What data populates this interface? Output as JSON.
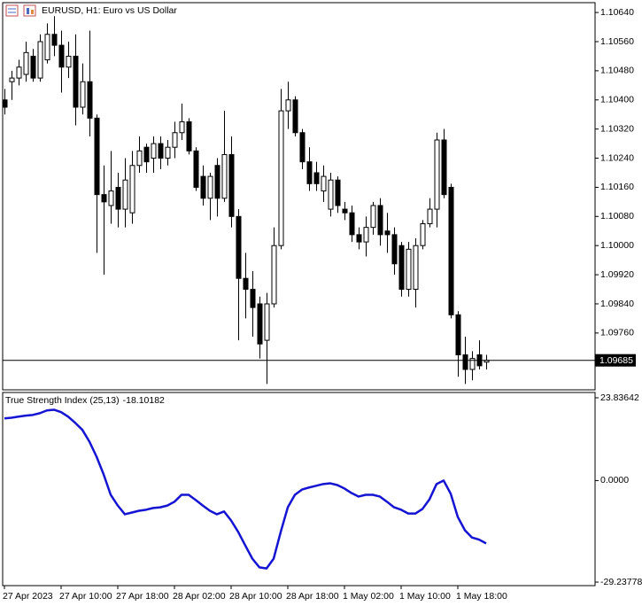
{
  "chart_data": [
    {
      "type": "candlestick",
      "title": "EURUSD, H1:  Euro vs US Dollar",
      "open": [
        1.104,
        1.1045,
        1.1046,
        1.1047,
        1.1052,
        1.1046,
        1.1051,
        1.1058,
        1.1055,
        1.1049,
        1.1052,
        1.1038,
        1.1045,
        1.1035,
        1.1014,
        1.1011,
        1.1016,
        1.101,
        1.1009,
        1.1022,
        1.1027,
        1.1024,
        1.1028,
        1.1024,
        1.1027,
        1.1031,
        1.1034,
        1.1026,
        1.1019,
        1.1013,
        1.1022,
        1.1013,
        1.1025,
        1.1008,
        1.0991,
        1.0988,
        1.0984,
        1.0974,
        1.0984,
        1.1,
        1.1037,
        1.104,
        1.1031,
        1.1023,
        1.102,
        1.1015,
        1.101,
        1.1018,
        1.101,
        1.1009,
        1.1003,
        1.1001,
        1.1005,
        1.1011,
        1.1004,
        1.1003,
        1.1,
        1.0988,
        1.0988,
        1.1,
        1.1006,
        1.101,
        1.1029,
        1.1016,
        1.0981,
        1.097,
        1.0966,
        1.097,
        1.0968
      ],
      "high": [
        1.1043,
        1.1048,
        1.1051,
        1.1056,
        1.1054,
        1.1058,
        1.1061,
        1.1063,
        1.1059,
        1.1056,
        1.1058,
        1.105,
        1.1059,
        1.1036,
        1.1022,
        1.1026,
        1.102,
        1.1024,
        1.1026,
        1.103,
        1.1028,
        1.103,
        1.103,
        1.1029,
        1.1034,
        1.1039,
        1.1035,
        1.1027,
        1.1022,
        1.102,
        1.1024,
        1.1037,
        1.103,
        1.101,
        1.0998,
        1.0993,
        1.0986,
        1.0987,
        1.1005,
        1.1043,
        1.1045,
        1.1041,
        1.1032,
        1.1027,
        1.1023,
        1.1022,
        1.102,
        1.1019,
        1.1012,
        1.1011,
        1.1005,
        1.1008,
        1.1012,
        1.1013,
        1.1009,
        1.1005,
        1.1001,
        1.1001,
        1.1002,
        1.1007,
        1.1013,
        1.1031,
        1.1032,
        1.1017,
        1.0982,
        1.0975,
        1.0971,
        1.0974,
        1.097
      ],
      "low": [
        1.1036,
        1.104,
        1.1044,
        1.1045,
        1.1045,
        1.1045,
        1.105,
        1.1052,
        1.1042,
        1.1046,
        1.1033,
        1.1036,
        1.103,
        1.0998,
        1.0992,
        1.1006,
        1.1005,
        1.1005,
        1.1006,
        1.102,
        1.102,
        1.102,
        1.1021,
        1.1022,
        1.1024,
        1.1029,
        1.1025,
        1.1015,
        1.1011,
        1.1007,
        1.1008,
        1.1012,
        1.1005,
        1.0974,
        1.098,
        1.0975,
        1.0969,
        1.0962,
        1.0983,
        1.0999,
        1.1032,
        1.103,
        1.1021,
        1.1015,
        1.1015,
        1.1012,
        1.1008,
        1.1009,
        1.1007,
        1.1001,
        1.0999,
        1.0997,
        1.1003,
        1.1,
        1.0998,
        1.0992,
        1.0986,
        1.0986,
        1.0983,
        1.0999,
        1.1005,
        1.1005,
        1.1013,
        1.098,
        1.0964,
        1.0962,
        1.0963,
        1.0966,
        1.0966
      ],
      "close": [
        1.1038,
        1.1046,
        1.1049,
        1.1053,
        1.1046,
        1.1056,
        1.1058,
        1.1055,
        1.1049,
        1.1052,
        1.1038,
        1.1045,
        1.1035,
        1.1014,
        1.1012,
        1.1015,
        1.101,
        1.1018,
        1.1022,
        1.1026,
        1.1023,
        1.1028,
        1.1024,
        1.1027,
        1.1031,
        1.1034,
        1.1026,
        1.1016,
        1.1013,
        1.1019,
        1.1013,
        1.1025,
        1.1008,
        1.0991,
        1.0988,
        1.0983,
        1.0973,
        1.0984,
        1.1,
        1.1037,
        1.104,
        1.1031,
        1.1023,
        1.1017,
        1.1017,
        1.1019,
        1.1018,
        1.1011,
        1.1009,
        1.1003,
        1.1001,
        1.1005,
        1.1011,
        1.1003,
        1.1003,
        1.0995,
        1.0988,
        1.0999,
        1.1,
        1.1006,
        1.101,
        1.1029,
        1.1014,
        1.0981,
        1.097,
        1.0966,
        1.0969,
        1.0967,
        1.09685
      ],
      "up_color": "#ffffff",
      "down_color": "#000000",
      "wick_color": "#000000",
      "price_line": true,
      "ylim": [
        1.09604,
        1.10667
      ],
      "yticks": [
        {
          "value": 1.1064,
          "label": "1.10640"
        },
        {
          "value": 1.1056,
          "label": "1.10560"
        },
        {
          "value": 1.1048,
          "label": "1.10480"
        },
        {
          "value": 1.104,
          "label": "1.10400"
        },
        {
          "value": 1.1032,
          "label": "1.10320"
        },
        {
          "value": 1.1024,
          "label": "1.10240"
        },
        {
          "value": 1.1016,
          "label": "1.10160"
        },
        {
          "value": 1.1008,
          "label": "1.10080"
        },
        {
          "value": 1.1,
          "label": "1.10000"
        },
        {
          "value": 1.0992,
          "label": "1.09920"
        },
        {
          "value": 1.0984,
          "label": "1.09840"
        },
        {
          "value": 1.0976,
          "label": "1.09760"
        }
      ],
      "grid": false
    },
    {
      "type": "line",
      "title": "True Strength Index (25,13)",
      "categories": [
        "27 Apr 2023",
        null,
        null,
        null,
        null,
        null,
        null,
        null,
        "27 Apr 10:00",
        null,
        null,
        null,
        null,
        null,
        null,
        null,
        "27 Apr 18:00",
        null,
        null,
        null,
        null,
        null,
        null,
        null,
        "28 Apr 02:00",
        null,
        null,
        null,
        null,
        null,
        null,
        null,
        "28 Apr 10:00",
        null,
        null,
        null,
        null,
        null,
        null,
        null,
        "28 Apr 18:00",
        null,
        null,
        null,
        null,
        null,
        null,
        null,
        "1 May 02:00",
        null,
        null,
        null,
        null,
        null,
        null,
        null,
        "1 May 10:00",
        null,
        null,
        null,
        null,
        null,
        null,
        null,
        "1 May 18:00",
        null,
        null,
        null,
        null
      ],
      "series": [
        {
          "name": "True Strength Index (25,13)",
          "color": "#1414d2",
          "values": [
            17.9,
            18.1,
            18.4,
            18.7,
            18.9,
            19.4,
            20.2,
            20.4,
            19.7,
            18.4,
            16.6,
            14.6,
            11.2,
            6.9,
            1.8,
            -4.1,
            -7.2,
            -9.7,
            -9.2,
            -8.7,
            -8.4,
            -7.9,
            -7.7,
            -7.2,
            -6.1,
            -4.1,
            -4.1,
            -5.6,
            -7.2,
            -8.7,
            -9.7,
            -8.9,
            -11.5,
            -14.8,
            -18.7,
            -22.5,
            -25.0,
            -25.3,
            -22.5,
            -14.8,
            -7.7,
            -4.1,
            -2.6,
            -2.0,
            -1.5,
            -1.0,
            -0.8,
            -1.3,
            -2.3,
            -3.6,
            -4.6,
            -4.1,
            -4.1,
            -4.6,
            -6.1,
            -7.7,
            -8.4,
            -9.5,
            -9.5,
            -8.2,
            -5.4,
            -1.0,
            0.0,
            -3.8,
            -10.5,
            -14.3,
            -16.4,
            -17.0,
            -18.10182
          ]
        }
      ],
      "ylim": [
        -30.25,
        25.36
      ],
      "yticks": [
        23.83642,
        {
          "value": 0,
          "label": "0.0000"
        },
        -29.23778
      ],
      "grid": false
    }
  ]
}
